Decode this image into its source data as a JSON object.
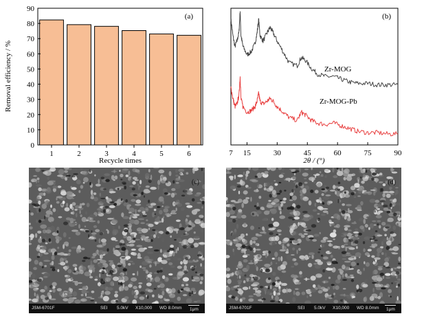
{
  "chart_data": [
    {
      "type": "bar",
      "panel_tag": "(a)",
      "categories": [
        "1",
        "2",
        "3",
        "4",
        "5",
        "6"
      ],
      "values": [
        82.3,
        79.2,
        78.1,
        75.3,
        73.1,
        72.2
      ],
      "xlabel": "Recycle times",
      "ylabel": "Removal efficiency / %",
      "ylim": [
        0,
        90
      ],
      "yticks": [
        "0",
        "10",
        "20",
        "30",
        "40",
        "50",
        "60",
        "70",
        "80",
        "90"
      ],
      "bar_color": "#f7be95",
      "grid": false
    },
    {
      "type": "line",
      "panel_tag": "(b)",
      "xlabel": "2θ / (°)",
      "xlim": [
        7,
        90
      ],
      "xticks": [
        "7",
        "15",
        "30",
        "45",
        "60",
        "75",
        "90"
      ],
      "y_axis_ticks_labeled": false,
      "grid": false,
      "series": [
        {
          "name": "Zr-MOG",
          "color": "#444444",
          "x": [
            7,
            8,
            9,
            10,
            11,
            11.6,
            12,
            13,
            15,
            17,
            19,
            20,
            20.8,
            21.5,
            23,
            25,
            26.5,
            28,
            30,
            33,
            36,
            40,
            42,
            44,
            47,
            50,
            54,
            58,
            62,
            66,
            70,
            75,
            80,
            85,
            90
          ],
          "y": [
            0.92,
            0.8,
            0.72,
            0.76,
            0.82,
            0.98,
            0.8,
            0.72,
            0.66,
            0.68,
            0.74,
            0.82,
            0.92,
            0.8,
            0.76,
            0.82,
            0.86,
            0.82,
            0.76,
            0.68,
            0.6,
            0.58,
            0.64,
            0.62,
            0.56,
            0.52,
            0.5,
            0.5,
            0.48,
            0.46,
            0.45,
            0.45,
            0.44,
            0.44,
            0.44
          ]
        },
        {
          "name": "Zr-MOG-Pb",
          "color": "#e84040",
          "x": [
            7,
            8,
            9,
            10,
            11,
            11.6,
            12,
            13,
            15,
            17,
            19,
            20,
            20.8,
            21.5,
            23,
            25,
            26.5,
            28,
            30,
            33,
            36,
            40,
            42,
            44,
            47,
            50,
            54,
            58,
            62,
            66,
            70,
            75,
            80,
            85,
            90
          ],
          "y": [
            0.42,
            0.34,
            0.28,
            0.3,
            0.36,
            0.5,
            0.34,
            0.28,
            0.24,
            0.25,
            0.28,
            0.32,
            0.38,
            0.32,
            0.3,
            0.32,
            0.34,
            0.32,
            0.28,
            0.24,
            0.2,
            0.18,
            0.24,
            0.22,
            0.18,
            0.16,
            0.15,
            0.16,
            0.14,
            0.12,
            0.1,
            0.09,
            0.09,
            0.08,
            0.08
          ]
        }
      ]
    }
  ],
  "sem_images": [
    {
      "panel_tag": "(c)",
      "footer": [
        "JSM-6701F",
        "SEI",
        "5.0kV",
        "X10,000",
        "WD 8.0mm",
        "1μm"
      ]
    },
    {
      "panel_tag": "(d)",
      "footer": [
        "JSM-6701F",
        "SEI",
        "5.0kV",
        "X10,000",
        "WD 8.0mm",
        "1μm"
      ]
    }
  ]
}
